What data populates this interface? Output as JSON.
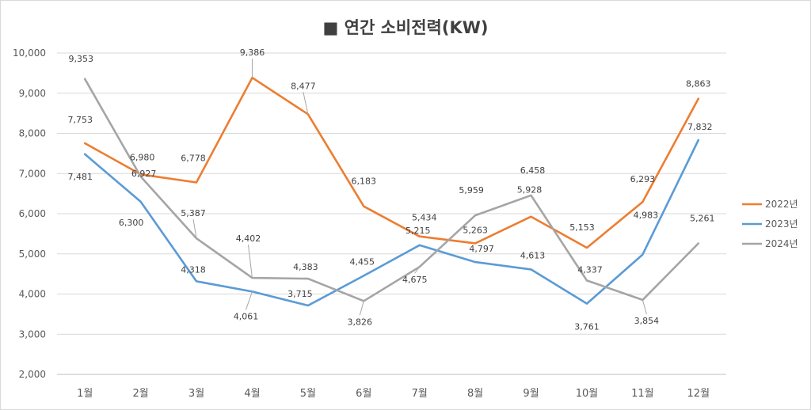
{
  "chart_data": {
    "type": "line",
    "title": "■ 연간 소비전력(KW)",
    "xlabel": "",
    "ylabel": "",
    "categories": [
      "1월",
      "2월",
      "3월",
      "4월",
      "5월",
      "6월",
      "7월",
      "8월",
      "9월",
      "10월",
      "11월",
      "12월"
    ],
    "ylim": [
      2000,
      10000
    ],
    "yticks": [
      2000,
      3000,
      4000,
      5000,
      6000,
      7000,
      8000,
      9000,
      10000
    ],
    "ytick_labels": [
      "2,000",
      "3,000",
      "4,000",
      "5,000",
      "6,000",
      "7,000",
      "8,000",
      "9,000",
      "10,000"
    ],
    "grid": true,
    "legend_position": "right",
    "series": [
      {
        "name": "2022년",
        "color": "#ed7d31",
        "values": [
          7753,
          6980,
          6778,
          9386,
          8477,
          6183,
          5434,
          5263,
          5928,
          5153,
          6293,
          8863
        ],
        "labels": [
          "7,753",
          "6,980",
          "6,778",
          "9,386",
          "8,477",
          "6,183",
          "5,434",
          "5,263",
          "5,928",
          "5,153",
          "6,293",
          "8,863"
        ]
      },
      {
        "name": "2023년",
        "color": "#5b9bd5",
        "values": [
          7481,
          6300,
          4318,
          4061,
          3715,
          4455,
          5215,
          4797,
          4613,
          3761,
          4983,
          7832
        ],
        "labels": [
          "7,481",
          "6,300",
          "4,318",
          "4,061",
          "3,715",
          "4,455",
          "5,215",
          "4,797",
          "4,613",
          "3,761",
          "4,983",
          "7,832"
        ]
      },
      {
        "name": "2024년",
        "color": "#a5a5a5",
        "values": [
          9353,
          6927,
          5387,
          4402,
          4383,
          3826,
          4675,
          5959,
          6458,
          4337,
          3854,
          5261
        ],
        "labels": [
          "9,353",
          "6,927",
          "5,387",
          "4,402",
          "4,383",
          "3,826",
          "4,675",
          "5,959",
          "6,458",
          "4,337",
          "3,854",
          "5,261"
        ]
      }
    ]
  }
}
